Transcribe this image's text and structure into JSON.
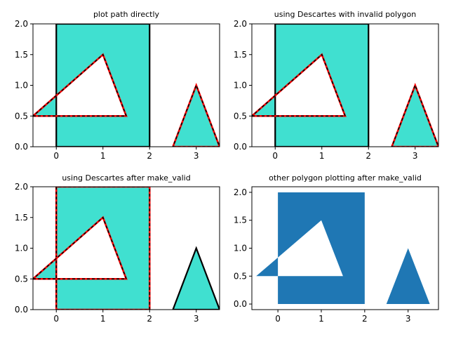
{
  "chart_data": [
    {
      "type": "polygon",
      "title": "plot path directly",
      "xlim": [
        -0.5,
        3.5
      ],
      "ylim": [
        0,
        2
      ],
      "xticks": [
        0,
        1,
        2,
        3
      ],
      "yticks": [
        0.0,
        0.5,
        1.0,
        1.5,
        2.0
      ],
      "xtick_labels": [
        "0",
        "1",
        "2",
        "3"
      ],
      "ytick_labels": [
        "0.0",
        "0.5",
        "1.0",
        "1.5",
        "2.0"
      ],
      "fill_rule": "evenodd",
      "fill_color": "#40e0d0",
      "rectangle": [
        [
          0,
          0
        ],
        [
          2,
          0
        ],
        [
          2,
          2
        ],
        [
          0,
          2
        ]
      ],
      "triangle_left": [
        [
          -0.5,
          0.5
        ],
        [
          1.5,
          0.5
        ],
        [
          1,
          1.5
        ]
      ],
      "triangle_right": [
        [
          2.5,
          0
        ],
        [
          3.5,
          0
        ],
        [
          3,
          1
        ]
      ],
      "rect_edge": "solid",
      "left_tri_edge": "dashed",
      "right_tri_edge": "dashed"
    },
    {
      "type": "polygon",
      "title": "using Descartes with invalid polygon",
      "xlim": [
        -0.5,
        3.5
      ],
      "ylim": [
        0,
        2
      ],
      "xticks": [
        0,
        1,
        2,
        3
      ],
      "yticks": [
        0.0,
        0.5,
        1.0,
        1.5,
        2.0
      ],
      "xtick_labels": [
        "0",
        "1",
        "2",
        "3"
      ],
      "ytick_labels": [
        "0.0",
        "0.5",
        "1.0",
        "1.5",
        "2.0"
      ],
      "fill_rule": "evenodd",
      "fill_color": "#40e0d0",
      "rectangle": [
        [
          0,
          0
        ],
        [
          2,
          0
        ],
        [
          2,
          2
        ],
        [
          0,
          2
        ]
      ],
      "triangle_left": [
        [
          -0.5,
          0.5
        ],
        [
          1.5,
          0.5
        ],
        [
          1,
          1.5
        ]
      ],
      "triangle_right": [
        [
          2.5,
          0
        ],
        [
          3.5,
          0
        ],
        [
          3,
          1
        ]
      ],
      "rect_edge": "solid",
      "left_tri_edge": "dashed",
      "right_tri_edge": "dashed"
    },
    {
      "type": "polygon",
      "title": "using Descartes after make_valid",
      "xlim": [
        -0.5,
        3.5
      ],
      "ylim": [
        0,
        2
      ],
      "xticks": [
        0,
        1,
        2,
        3
      ],
      "yticks": [
        0.0,
        0.5,
        1.0,
        1.5,
        2.0
      ],
      "xtick_labels": [
        "0",
        "1",
        "2",
        "3"
      ],
      "ytick_labels": [
        "0.0",
        "0.5",
        "1.0",
        "1.5",
        "2.0"
      ],
      "fill_rule": "evenodd",
      "fill_color": "#40e0d0",
      "rectangle": [
        [
          0,
          0
        ],
        [
          2,
          0
        ],
        [
          2,
          2
        ],
        [
          0,
          2
        ]
      ],
      "triangle_left": [
        [
          -0.5,
          0.5
        ],
        [
          1.5,
          0.5
        ],
        [
          1,
          1.5
        ]
      ],
      "triangle_right": [
        [
          2.5,
          0
        ],
        [
          3.5,
          0
        ],
        [
          3,
          1
        ]
      ],
      "rect_edge": "dashed",
      "left_tri_edge": "dashed",
      "right_tri_edge": "solid"
    },
    {
      "type": "polygon",
      "title": "other polygon plotting after make_valid",
      "xlim": [
        -0.6,
        3.7
      ],
      "ylim": [
        -0.1,
        2.1
      ],
      "xticks": [
        0,
        1,
        2,
        3
      ],
      "yticks": [
        0.0,
        0.5,
        1.0,
        1.5,
        2.0
      ],
      "xtick_labels": [
        "0",
        "1",
        "2",
        "3"
      ],
      "ytick_labels": [
        "0.0",
        "0.5",
        "1.0",
        "1.5",
        "2.0"
      ],
      "fill_rule": "evenodd",
      "fill_color": "#1f77b4",
      "rectangle": [
        [
          0,
          0
        ],
        [
          2,
          0
        ],
        [
          2,
          2
        ],
        [
          0,
          2
        ]
      ],
      "triangle_left": [
        [
          -0.5,
          0.5
        ],
        [
          1.5,
          0.5
        ],
        [
          1,
          1.5
        ]
      ],
      "triangle_right": [
        [
          2.5,
          0
        ],
        [
          3.5,
          0
        ],
        [
          3,
          1
        ]
      ],
      "rect_edge": "none",
      "left_tri_edge": "none",
      "right_tri_edge": "none"
    }
  ]
}
